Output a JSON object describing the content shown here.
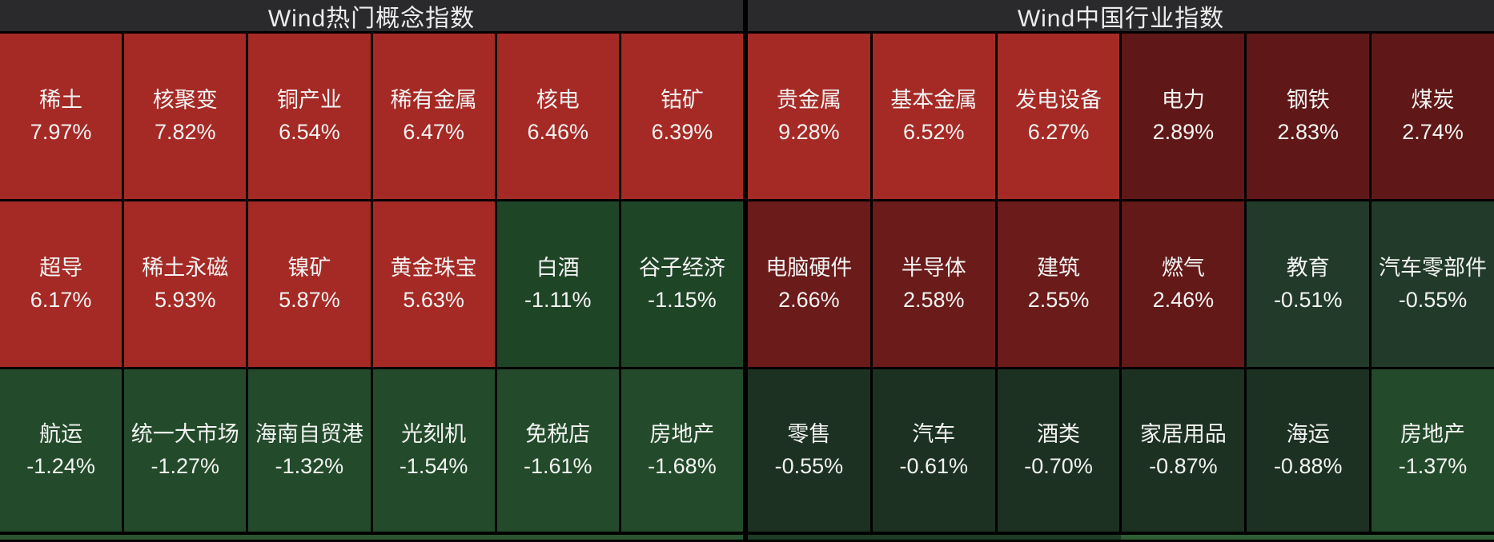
{
  "colors": {
    "background": "#000000",
    "header_bg": "#2a2a2d",
    "header_text": "#ececec",
    "tile_text": "#f3f3f3",
    "gain_strong_red": "#a52a25",
    "gain_weak_red": "#5f1817",
    "loss_weak_green": "#1d3123",
    "loss_strong_green": "#234b2b"
  },
  "panels": [
    {
      "title": "Wind热门概念指数",
      "rows": [
        [
          {
            "name": "稀土",
            "value": "7.97%",
            "color": "#a52a25"
          },
          {
            "name": "核聚变",
            "value": "7.82%",
            "color": "#a52a25"
          },
          {
            "name": "铜产业",
            "value": "6.54%",
            "color": "#a52a25"
          },
          {
            "name": "稀有金属",
            "value": "6.47%",
            "color": "#a52a25"
          },
          {
            "name": "核电",
            "value": "6.46%",
            "color": "#a52a25"
          },
          {
            "name": "钴矿",
            "value": "6.39%",
            "color": "#a52a25"
          }
        ],
        [
          {
            "name": "超导",
            "value": "6.17%",
            "color": "#a52a25"
          },
          {
            "name": "稀土永磁",
            "value": "5.93%",
            "color": "#a52a25"
          },
          {
            "name": "镍矿",
            "value": "5.87%",
            "color": "#a52a25"
          },
          {
            "name": "黄金珠宝",
            "value": "5.63%",
            "color": "#a52a25"
          },
          {
            "name": "白酒",
            "value": "-1.11%",
            "color": "#1f4527"
          },
          {
            "name": "谷子经济",
            "value": "-1.15%",
            "color": "#1f4527"
          }
        ],
        [
          {
            "name": "航运",
            "value": "-1.24%",
            "color": "#234b2b"
          },
          {
            "name": "统一大市场",
            "value": "-1.27%",
            "color": "#234b2b"
          },
          {
            "name": "海南自贸港",
            "value": "-1.32%",
            "color": "#234b2b"
          },
          {
            "name": "光刻机",
            "value": "-1.54%",
            "color": "#234b2b"
          },
          {
            "name": "免税店",
            "value": "-1.61%",
            "color": "#234b2b"
          },
          {
            "name": "房地产",
            "value": "-1.68%",
            "color": "#234b2b"
          }
        ]
      ],
      "strip": [
        {
          "color": "#2b5530",
          "span": 6
        }
      ]
    },
    {
      "title": "Wind中国行业指数",
      "rows": [
        [
          {
            "name": "贵金属",
            "value": "9.28%",
            "color": "#a52a25"
          },
          {
            "name": "基本金属",
            "value": "6.52%",
            "color": "#a52a25"
          },
          {
            "name": "发电设备",
            "value": "6.27%",
            "color": "#a52a25"
          },
          {
            "name": "电力",
            "value": "2.89%",
            "color": "#5f1817"
          },
          {
            "name": "钢铁",
            "value": "2.83%",
            "color": "#5f1817"
          },
          {
            "name": "煤炭",
            "value": "2.74%",
            "color": "#5f1817"
          }
        ],
        [
          {
            "name": "电脑硬件",
            "value": "2.66%",
            "color": "#6a1b1a"
          },
          {
            "name": "半导体",
            "value": "2.58%",
            "color": "#6a1b1a"
          },
          {
            "name": "建筑",
            "value": "2.55%",
            "color": "#6a1b1a"
          },
          {
            "name": "燃气",
            "value": "2.46%",
            "color": "#631918"
          },
          {
            "name": "教育",
            "value": "-0.51%",
            "color": "#213a29"
          },
          {
            "name": "汽车零部件",
            "value": "-0.55%",
            "color": "#213a29"
          }
        ],
        [
          {
            "name": "零售",
            "value": "-0.55%",
            "color": "#1d3123"
          },
          {
            "name": "汽车",
            "value": "-0.61%",
            "color": "#1d3123"
          },
          {
            "name": "酒类",
            "value": "-0.70%",
            "color": "#1d3123"
          },
          {
            "name": "家居用品",
            "value": "-0.87%",
            "color": "#1d3123"
          },
          {
            "name": "海运",
            "value": "-0.88%",
            "color": "#1d3123"
          },
          {
            "name": "房地产",
            "value": "-1.37%",
            "color": "#234b2b"
          }
        ]
      ],
      "strip": [
        {
          "color": "#1e3b26",
          "span": 3
        },
        {
          "color": "#2e5e33",
          "span": 3
        }
      ]
    }
  ],
  "chart_data": [
    {
      "type": "heatmap",
      "title": "Wind热门概念指数",
      "categories": [
        "稀土",
        "核聚变",
        "铜产业",
        "稀有金属",
        "核电",
        "钴矿",
        "超导",
        "稀土永磁",
        "镍矿",
        "黄金珠宝",
        "白酒",
        "谷子经济",
        "航运",
        "统一大市场",
        "海南自贸港",
        "光刻机",
        "免税店",
        "房地产"
      ],
      "values": [
        7.97,
        7.82,
        6.54,
        6.47,
        6.46,
        6.39,
        6.17,
        5.93,
        5.87,
        5.63,
        -1.11,
        -1.15,
        -1.24,
        -1.27,
        -1.32,
        -1.54,
        -1.61,
        -1.68
      ],
      "unit": "%",
      "layout": "6 columns x 3 rows, red = gain, green = loss"
    },
    {
      "type": "heatmap",
      "title": "Wind中国行业指数",
      "categories": [
        "贵金属",
        "基本金属",
        "发电设备",
        "电力",
        "钢铁",
        "煤炭",
        "电脑硬件",
        "半导体",
        "建筑",
        "燃气",
        "教育",
        "汽车零部件",
        "零售",
        "汽车",
        "酒类",
        "家居用品",
        "海运",
        "房地产"
      ],
      "values": [
        9.28,
        6.52,
        6.27,
        2.89,
        2.83,
        2.74,
        2.66,
        2.58,
        2.55,
        2.46,
        -0.51,
        -0.55,
        -0.55,
        -0.61,
        -0.7,
        -0.87,
        -0.88,
        -1.37
      ],
      "unit": "%",
      "layout": "6 columns x 3 rows, red = gain, green = loss"
    }
  ]
}
